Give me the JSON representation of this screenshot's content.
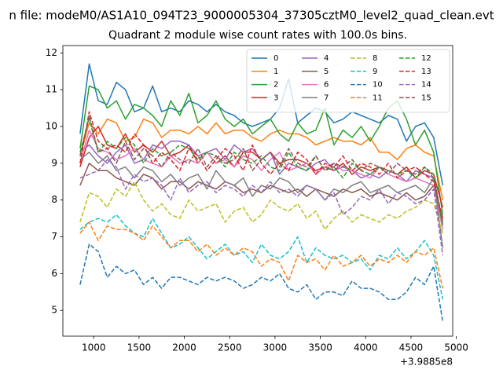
{
  "figure": {
    "suptitle": "n file: modeM0/AS1A10_094T23_9000005304_37305cztM0_level2_quad_clean.evt",
    "background": "#ffffff"
  },
  "chart_data": {
    "type": "line",
    "title": "Quadrant 2 module wise count rates with 100.0s bins.",
    "xlabel": "",
    "ylabel": "",
    "x_offset_label": "+3.9885e8",
    "xlim": [
      660,
      4960
    ],
    "ylim": [
      4.3,
      12.2
    ],
    "xticks": [
      1000,
      1500,
      2000,
      2500,
      3000,
      3500,
      4000,
      4500,
      5000
    ],
    "yticks": [
      5,
      6,
      7,
      8,
      9,
      10,
      11,
      12
    ],
    "grid": false,
    "legend": {
      "placement": "top-right",
      "columns": 4
    },
    "x": [
      850,
      950,
      1050,
      1150,
      1250,
      1350,
      1450,
      1550,
      1650,
      1750,
      1850,
      1950,
      2050,
      2150,
      2250,
      2350,
      2450,
      2550,
      2650,
      2750,
      2850,
      2950,
      3050,
      3150,
      3250,
      3350,
      3450,
      3550,
      3650,
      3750,
      3850,
      3950,
      4050,
      4150,
      4250,
      4350,
      4450,
      4550,
      4650,
      4750,
      4850
    ],
    "series": [
      {
        "name": "0",
        "color": "#1f77b4",
        "dash": "solid",
        "values": [
          9.8,
          11.7,
          10.7,
          10.6,
          11.2,
          11.0,
          10.4,
          10.5,
          11.1,
          10.4,
          10.5,
          10.4,
          10.7,
          10.6,
          10.4,
          10.6,
          10.4,
          10.3,
          10.1,
          10.0,
          10.1,
          10.2,
          10.5,
          11.3,
          10.1,
          10.3,
          10.5,
          10.4,
          10.1,
          10.2,
          10.4,
          10.3,
          10.2,
          10.1,
          10.3,
          10.2,
          9.6,
          10.0,
          10.1,
          9.7,
          8.4
        ]
      },
      {
        "name": "1",
        "color": "#ff7f0e",
        "dash": "solid",
        "values": [
          9.2,
          10.1,
          9.8,
          10.2,
          10.1,
          9.6,
          9.7,
          10.2,
          10.1,
          9.7,
          9.9,
          9.9,
          9.8,
          10.0,
          9.8,
          10.1,
          9.8,
          9.9,
          9.9,
          9.7,
          9.6,
          9.8,
          9.9,
          9.8,
          9.8,
          9.7,
          9.5,
          9.6,
          9.7,
          9.6,
          9.6,
          9.5,
          9.7,
          9.3,
          9.3,
          9.1,
          9.4,
          9.5,
          9.3,
          9.2,
          8.0
        ]
      },
      {
        "name": "2",
        "color": "#2ca02c",
        "dash": "solid",
        "values": [
          9.4,
          11.1,
          11.0,
          10.5,
          10.7,
          10.2,
          10.6,
          10.5,
          10.3,
          10.0,
          10.7,
          10.3,
          10.9,
          10.1,
          10.3,
          10.7,
          10.2,
          10.0,
          10.2,
          9.8,
          10.0,
          10.2,
          9.8,
          9.6,
          10.1,
          9.8,
          9.9,
          10.5,
          9.5,
          9.9,
          9.7,
          10.0,
          9.6,
          10.0,
          10.5,
          10.7,
          10.2,
          9.5,
          9.9,
          9.3,
          7.6
        ]
      },
      {
        "name": "3",
        "color": "#d62728",
        "dash": "solid",
        "values": [
          8.9,
          9.7,
          10.0,
          9.5,
          9.4,
          9.8,
          9.3,
          9.5,
          9.3,
          9.6,
          9.2,
          9.3,
          9.5,
          9.0,
          9.3,
          9.0,
          9.2,
          8.9,
          9.3,
          9.3,
          9.1,
          9.3,
          9.0,
          9.1,
          9.1,
          9.0,
          8.8,
          8.9,
          8.8,
          9.0,
          8.7,
          8.9,
          8.8,
          8.9,
          8.8,
          8.7,
          8.9,
          8.6,
          8.8,
          8.7,
          7.8
        ]
      },
      {
        "name": "4",
        "color": "#9467bd",
        "dash": "solid",
        "values": [
          9.3,
          9.5,
          9.2,
          9.0,
          9.3,
          9.5,
          9.0,
          9.1,
          9.5,
          9.4,
          9.6,
          9.6,
          9.5,
          9.2,
          9.3,
          9.4,
          9.1,
          9.5,
          9.3,
          9.4,
          9.1,
          9.3,
          8.7,
          9.0,
          8.9,
          8.8,
          9.0,
          9.1,
          8.8,
          8.9,
          8.8,
          8.6,
          8.7,
          8.6,
          8.8,
          8.7,
          8.5,
          8.8,
          8.7,
          8.6,
          7.3
        ]
      },
      {
        "name": "5",
        "color": "#8c564b",
        "dash": "solid",
        "values": [
          8.4,
          9.0,
          8.8,
          8.8,
          8.6,
          8.5,
          8.4,
          8.7,
          8.6,
          8.3,
          8.5,
          8.5,
          8.3,
          8.5,
          8.4,
          8.3,
          8.5,
          8.4,
          8.2,
          8.3,
          8.2,
          8.4,
          8.3,
          8.2,
          8.3,
          8.1,
          8.3,
          8.2,
          8.1,
          8.3,
          8.2,
          8.3,
          8.1,
          8.2,
          8.1,
          8.0,
          8.2,
          8.0,
          8.1,
          8.4,
          7.4
        ]
      },
      {
        "name": "6",
        "color": "#e377c2",
        "dash": "solid",
        "values": [
          9.0,
          9.9,
          9.4,
          9.3,
          9.1,
          9.2,
          9.4,
          9.1,
          9.0,
          8.9,
          9.2,
          9.0,
          9.1,
          9.0,
          9.3,
          9.0,
          9.1,
          8.9,
          9.2,
          9.1,
          8.8,
          9.1,
          9.3,
          8.8,
          8.9,
          9.0,
          8.7,
          8.9,
          9.0,
          8.8,
          8.8,
          8.7,
          8.6,
          8.9,
          8.7,
          8.6,
          8.5,
          8.6,
          8.5,
          8.4,
          7.2
        ]
      },
      {
        "name": "7",
        "color": "#7f7f7f",
        "dash": "solid",
        "values": [
          9.1,
          9.3,
          9.0,
          9.2,
          8.8,
          8.9,
          8.6,
          8.9,
          8.8,
          8.5,
          8.7,
          8.4,
          8.6,
          8.7,
          8.3,
          8.8,
          8.5,
          8.4,
          8.6,
          8.1,
          8.4,
          8.3,
          8.6,
          8.5,
          8.2,
          8.4,
          8.3,
          8.0,
          8.3,
          8.2,
          8.4,
          8.5,
          8.2,
          8.3,
          8.4,
          8.2,
          8.3,
          8.4,
          8.2,
          8.6,
          6.7
        ]
      },
      {
        "name": "8",
        "color": "#bcbd22",
        "dash": "dashed",
        "values": [
          7.4,
          8.2,
          8.1,
          7.8,
          8.3,
          8.1,
          8.5,
          8.0,
          7.7,
          7.9,
          7.6,
          7.5,
          8.0,
          7.7,
          7.8,
          7.9,
          7.4,
          7.7,
          7.8,
          7.4,
          7.6,
          8.0,
          7.8,
          7.7,
          7.9,
          7.5,
          7.7,
          7.2,
          7.5,
          7.7,
          7.4,
          7.6,
          7.5,
          7.4,
          7.6,
          7.5,
          7.7,
          7.8,
          8.0,
          7.9,
          7.1
        ]
      },
      {
        "name": "9",
        "color": "#17becf",
        "dash": "dashed",
        "values": [
          7.2,
          7.4,
          7.5,
          7.4,
          7.6,
          7.3,
          7.1,
          7.0,
          7.5,
          7.1,
          6.7,
          6.8,
          7.0,
          6.7,
          6.4,
          6.6,
          6.8,
          6.5,
          6.6,
          6.3,
          6.8,
          6.5,
          6.4,
          6.6,
          7.0,
          6.3,
          6.7,
          6.5,
          6.4,
          6.5,
          6.3,
          6.4,
          6.1,
          6.5,
          6.4,
          6.7,
          6.4,
          6.6,
          6.9,
          6.5,
          5.3
        ]
      },
      {
        "name": "10",
        "color": "#1f77b4",
        "dash": "dashed",
        "values": [
          5.7,
          6.8,
          6.6,
          5.9,
          6.2,
          6.0,
          6.1,
          5.7,
          5.9,
          5.6,
          5.9,
          5.9,
          5.8,
          5.7,
          5.9,
          5.8,
          5.9,
          5.8,
          5.6,
          5.7,
          5.9,
          5.8,
          6.0,
          5.6,
          5.5,
          5.7,
          5.3,
          5.5,
          5.5,
          5.4,
          5.8,
          5.6,
          5.6,
          5.5,
          5.3,
          5.3,
          5.5,
          5.9,
          5.7,
          6.2,
          4.7
        ]
      },
      {
        "name": "11",
        "color": "#ff7f0e",
        "dash": "dashed",
        "values": [
          7.1,
          7.4,
          6.9,
          7.3,
          7.2,
          7.2,
          7.1,
          6.9,
          7.3,
          7.0,
          6.7,
          6.9,
          6.9,
          6.6,
          6.8,
          6.5,
          6.7,
          6.5,
          6.7,
          6.6,
          6.2,
          6.4,
          6.3,
          5.8,
          6.5,
          6.3,
          6.4,
          6.1,
          6.5,
          6.2,
          6.3,
          6.5,
          6.2,
          6.4,
          6.3,
          6.5,
          6.3,
          6.6,
          6.5,
          6.7,
          5.6
        ]
      },
      {
        "name": "12",
        "color": "#2ca02c",
        "dash": "dashed",
        "values": [
          9.3,
          10.2,
          9.3,
          9.6,
          9.4,
          9.7,
          9.5,
          9.0,
          9.4,
          9.2,
          9.3,
          9.5,
          9.4,
          9.1,
          9.3,
          9.2,
          8.9,
          9.3,
          9.1,
          9.0,
          9.2,
          8.9,
          8.8,
          9.3,
          8.9,
          8.8,
          9.2,
          8.8,
          8.9,
          8.6,
          9.0,
          8.8,
          8.7,
          8.9,
          8.8,
          8.7,
          8.8,
          8.6,
          8.9,
          8.7,
          7.3
        ]
      },
      {
        "name": "13",
        "color": "#d62728",
        "dash": "dashed",
        "values": [
          9.0,
          10.4,
          9.6,
          9.4,
          9.5,
          9.3,
          9.8,
          9.5,
          9.0,
          9.3,
          9.1,
          8.8,
          9.4,
          9.2,
          8.8,
          9.1,
          9.4,
          9.2,
          8.8,
          9.5,
          9.0,
          8.7,
          9.0,
          8.8,
          9.3,
          9.1,
          8.7,
          9.0,
          8.9,
          9.2,
          8.8,
          9.0,
          8.9,
          8.7,
          9.0,
          8.6,
          8.8,
          8.9,
          8.7,
          8.5,
          7.5
        ]
      },
      {
        "name": "14",
        "color": "#9467bd",
        "dash": "dashed",
        "values": [
          8.6,
          8.7,
          8.8,
          9.1,
          8.9,
          8.3,
          8.7,
          8.5,
          8.6,
          8.4,
          8.0,
          8.6,
          8.2,
          8.4,
          8.5,
          8.2,
          8.4,
          8.3,
          8.1,
          8.4,
          8.2,
          8.5,
          8.2,
          8.3,
          8.1,
          8.4,
          8.3,
          8.0,
          8.2,
          7.6,
          7.8,
          8.1,
          8.0,
          8.3,
          7.9,
          8.2,
          8.1,
          7.9,
          8.0,
          8.3,
          6.5
        ]
      },
      {
        "name": "15",
        "color": "#8c564b",
        "dash": "dashed",
        "values": [
          9.2,
          10.3,
          9.3,
          9.4,
          9.0,
          9.6,
          9.1,
          9.4,
          9.2,
          8.9,
          9.3,
          9.1,
          9.0,
          9.4,
          8.9,
          9.2,
          9.0,
          9.1,
          9.4,
          8.8,
          9.1,
          9.3,
          8.9,
          9.4,
          9.0,
          8.9,
          9.2,
          8.8,
          9.0,
          8.9,
          9.1,
          8.8,
          9.0,
          8.9,
          8.7,
          9.0,
          8.8,
          8.7,
          8.9,
          8.6,
          7.4
        ]
      }
    ]
  }
}
